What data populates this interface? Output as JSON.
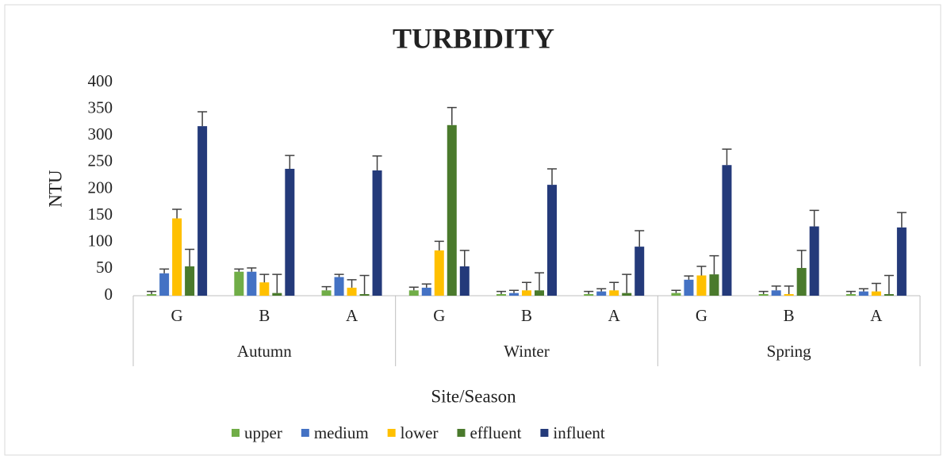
{
  "chart_data": {
    "type": "bar",
    "title": "TURBIDITY",
    "x_label": "Site/Season",
    "y_label": "NTU",
    "categories": [
      "G",
      "B",
      "A",
      "G",
      "B",
      "A",
      "G",
      "B",
      "A"
    ],
    "groups": [
      "Autumn",
      "Winter",
      "Spring"
    ],
    "ylim": [
      0,
      400
    ],
    "yticks": [
      0,
      50,
      100,
      150,
      200,
      250,
      300,
      350,
      400
    ],
    "grid": false,
    "legend": "bottom",
    "series": [
      {
        "name": "upper",
        "color": "#70ad47",
        "values": [
          3,
          45,
          10,
          10,
          3,
          3,
          5,
          3,
          3
        ],
        "errors": [
          5,
          5,
          7,
          6,
          5,
          5,
          5,
          5,
          5
        ]
      },
      {
        "name": "medium",
        "color": "#4472c4",
        "values": [
          42,
          45,
          35,
          15,
          5,
          8,
          30,
          10,
          8
        ],
        "errors": [
          8,
          7,
          5,
          7,
          5,
          5,
          7,
          8,
          5
        ]
      },
      {
        "name": "lower",
        "color": "#ffc000",
        "values": [
          145,
          25,
          15,
          85,
          10,
          10,
          38,
          3,
          8
        ],
        "errors": [
          17,
          15,
          15,
          17,
          15,
          15,
          17,
          15,
          15
        ]
      },
      {
        "name": "effluent",
        "color": "#4a7a2c",
        "values": [
          55,
          5,
          3,
          320,
          10,
          5,
          40,
          52,
          3
        ],
        "errors": [
          32,
          35,
          35,
          33,
          33,
          35,
          35,
          33,
          35
        ]
      },
      {
        "name": "influent",
        "color": "#243a7a",
        "values": [
          318,
          238,
          235,
          55,
          208,
          92,
          245,
          130,
          128
        ],
        "errors": [
          27,
          25,
          27,
          30,
          30,
          30,
          30,
          30,
          28
        ]
      }
    ]
  }
}
